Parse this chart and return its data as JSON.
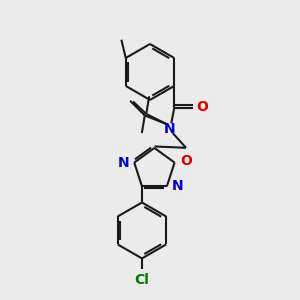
{
  "bg_color": "#ebebeb",
  "bond_color": "#1a1a1a",
  "N_color": "#0000cc",
  "O_color": "#dd0000",
  "Cl_color": "#007700",
  "lw": 1.5,
  "dpi": 100,
  "figsize": [
    3.0,
    3.0
  ],
  "xlim": [
    0,
    10
  ],
  "ylim": [
    0,
    10
  ]
}
